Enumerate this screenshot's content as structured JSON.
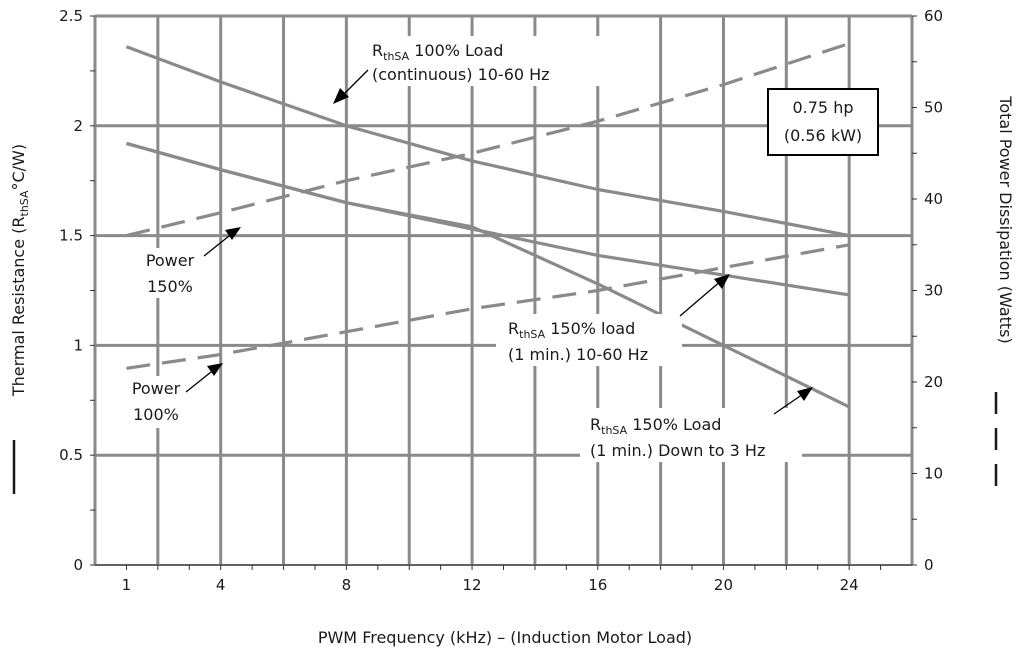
{
  "chart_data": {
    "type": "line",
    "xlabel": "PWM Frequency (kHz) – (Induction Motor Load)",
    "ylabel_left": {
      "main": "Thermal Resistance (R",
      "sub": "thSA",
      "tail": "°C/W)"
    },
    "ylabel_right": "Total Power Dissipation (Watts)",
    "x_ticks": [
      1,
      4,
      8,
      12,
      16,
      20,
      24
    ],
    "x_grid_step": 2,
    "xlim": [
      0,
      26
    ],
    "ylim_left": [
      0,
      2.5
    ],
    "ylim_right": [
      0,
      60
    ],
    "y_ticks_left": [
      "0",
      "0.5",
      "1",
      "1.5",
      "2",
      "2.5"
    ],
    "y_ticks_right": [
      "0",
      "10",
      "20",
      "30",
      "40",
      "50",
      "60"
    ],
    "box_label": [
      "0.75 hp",
      "(0.56 kW)"
    ],
    "series": [
      {
        "name": "RthSA 100% Load (continuous) 10-60 Hz",
        "axis": "left",
        "style": "solid",
        "x": [
          1,
          4,
          8,
          12,
          16,
          20,
          24
        ],
        "y": [
          2.36,
          2.2,
          2.0,
          1.84,
          1.71,
          1.61,
          1.5
        ]
      },
      {
        "name": "RthSA 150% load (1 min.) 10-60 Hz",
        "axis": "left",
        "style": "solid",
        "x": [
          1,
          4,
          8,
          12,
          16,
          20,
          24
        ],
        "y": [
          1.92,
          1.8,
          1.65,
          1.53,
          1.41,
          1.32,
          1.23
        ]
      },
      {
        "name": "RthSA 150% Load (1 min.) Down to 3 Hz",
        "axis": "left",
        "style": "solid",
        "x": [
          1,
          4,
          8,
          12,
          16,
          20,
          24
        ],
        "y": [
          1.92,
          1.8,
          1.65,
          1.54,
          1.28,
          1.0,
          0.72
        ]
      },
      {
        "name": "Power 150%",
        "axis": "right",
        "style": "dashed",
        "x": [
          1,
          4,
          8,
          12,
          16,
          20,
          24
        ],
        "y": [
          36,
          38.5,
          42,
          45,
          48.5,
          52.5,
          57
        ]
      },
      {
        "name": "Power 100%",
        "axis": "right",
        "style": "dashed",
        "x": [
          1,
          4,
          8,
          12,
          16,
          20,
          24
        ],
        "y": [
          21.5,
          23,
          25.5,
          28,
          30,
          32.5,
          35
        ]
      }
    ],
    "annotations": {
      "r100": {
        "main": "R",
        "sub": "thSA",
        "tail": " 100% Load",
        "line2": "(continuous) 10-60 Hz"
      },
      "r150a": {
        "main": "R",
        "sub": "thSA",
        "tail": " 150% load",
        "line2": "(1 min.) 10-60 Hz"
      },
      "r150b": {
        "main": "R",
        "sub": "thSA",
        "tail": " 150% Load",
        "line2": "(1 min.) Down to 3 Hz"
      },
      "p150": {
        "line1": "Power",
        "line2": "150%"
      },
      "p100": {
        "line1": "Power",
        "line2": "100%"
      }
    },
    "grid": true,
    "colors": {
      "grid": "#8a8a8a",
      "series": "#8a8a8a",
      "text": "#1a1a1a"
    }
  }
}
